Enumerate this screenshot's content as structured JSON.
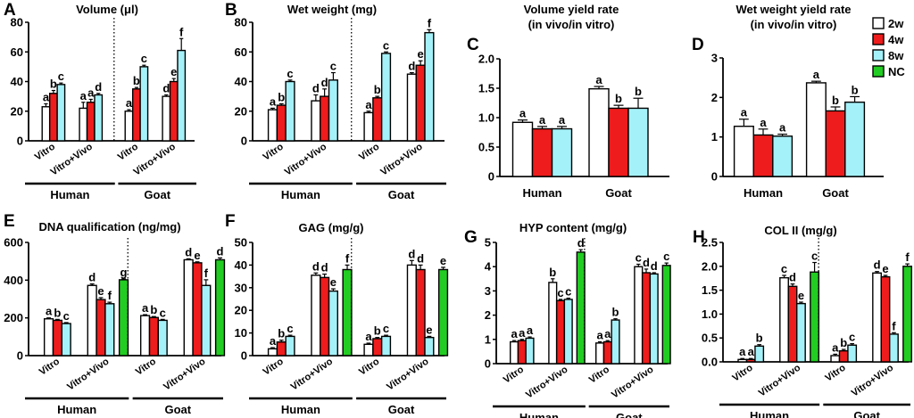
{
  "colors": {
    "2w": "#ffffff",
    "4w": "#ee1c1c",
    "8w": "#a5f1f9",
    "NC": "#22cc22"
  },
  "legend": {
    "title": "",
    "items": [
      "2w",
      "4w",
      "8w",
      "NC"
    ]
  },
  "chart_data": [
    {
      "id": "A",
      "type": "bar",
      "label": "A",
      "title": "Volume (μl)",
      "title2": "",
      "ylim": [
        0,
        80
      ],
      "yticks": [
        "0",
        "20",
        "40",
        "60",
        "80"
      ],
      "yticks_v": [
        0,
        20,
        40,
        60,
        80
      ],
      "layout": "four",
      "divider": true,
      "group_labels": [
        "Human",
        "Goat"
      ],
      "sub_labels": [
        "Vitro",
        "Vitro+Vivo",
        "Vitro",
        "Vitro+Vivo"
      ],
      "clusters": [
        {
          "bars": [
            {
              "s": "2w",
              "v": 23,
              "e": 2,
              "l": "a"
            },
            {
              "s": "4w",
              "v": 32,
              "e": 2,
              "l": "b"
            },
            {
              "s": "8w",
              "v": 38,
              "e": 1,
              "l": "c"
            }
          ]
        },
        {
          "bars": [
            {
              "s": "2w",
              "v": 22,
              "e": 4,
              "l": "a"
            },
            {
              "s": "4w",
              "v": 26,
              "e": 2,
              "l": "a"
            },
            {
              "s": "8w",
              "v": 31,
              "e": 1,
              "l": "d"
            }
          ]
        },
        {
          "bars": [
            {
              "s": "2w",
              "v": 20,
              "e": 1,
              "l": "a"
            },
            {
              "s": "4w",
              "v": 35,
              "e": 1,
              "l": "b"
            },
            {
              "s": "8w",
              "v": 50,
              "e": 1,
              "l": "c"
            }
          ]
        },
        {
          "bars": [
            {
              "s": "2w",
              "v": 30,
              "e": 1,
              "l": "d"
            },
            {
              "s": "4w",
              "v": 40,
              "e": 2,
              "l": "e"
            },
            {
              "s": "8w",
              "v": 61,
              "e": 8,
              "l": "f"
            }
          ]
        }
      ]
    },
    {
      "id": "B",
      "type": "bar",
      "label": "B",
      "title": "Wet weight (mg)",
      "title2": "",
      "ylim": [
        0,
        80
      ],
      "yticks": [
        "0",
        "20",
        "40",
        "60",
        "80"
      ],
      "yticks_v": [
        0,
        20,
        40,
        60,
        80
      ],
      "layout": "four",
      "divider": true,
      "group_labels": [
        "Human",
        "Goat"
      ],
      "sub_labels": [
        "Vitro",
        "Vitro+Vivo",
        "Vitro",
        "Vitro+Vivo"
      ],
      "clusters": [
        {
          "bars": [
            {
              "s": "2w",
              "v": 21,
              "e": 1,
              "l": "a"
            },
            {
              "s": "4w",
              "v": 24,
              "e": 1,
              "l": "b"
            },
            {
              "s": "8w",
              "v": 40,
              "e": 1,
              "l": "c"
            }
          ]
        },
        {
          "bars": [
            {
              "s": "2w",
              "v": 27,
              "e": 4,
              "l": "d"
            },
            {
              "s": "4w",
              "v": 30,
              "e": 5,
              "l": "d"
            },
            {
              "s": "8w",
              "v": 41,
              "e": 5,
              "l": "c"
            }
          ]
        },
        {
          "bars": [
            {
              "s": "2w",
              "v": 19,
              "e": 1,
              "l": "a"
            },
            {
              "s": "4w",
              "v": 29,
              "e": 1,
              "l": "b"
            },
            {
              "s": "8w",
              "v": 59,
              "e": 1,
              "l": "c"
            }
          ]
        },
        {
          "bars": [
            {
              "s": "2w",
              "v": 45,
              "e": 1,
              "l": "d"
            },
            {
              "s": "4w",
              "v": 51,
              "e": 3,
              "l": "e"
            },
            {
              "s": "8w",
              "v": 73,
              "e": 2,
              "l": "f"
            }
          ]
        }
      ]
    },
    {
      "id": "C",
      "type": "bar",
      "label": "C",
      "title": "Volume yield rate",
      "title2": "(in vivo/in vitro)",
      "ylim": [
        0,
        2.0
      ],
      "yticks": [
        "0",
        "0.5",
        "1.0",
        "1.5",
        "2.0"
      ],
      "yticks_v": [
        0,
        0.5,
        1.0,
        1.5,
        2.0
      ],
      "layout": "two",
      "divider": false,
      "group_labels": [
        "Human",
        "Goat"
      ],
      "sub_labels": [],
      "clusters": [
        {
          "bars": [
            {
              "s": "2w",
              "v": 0.92,
              "e": 0.04,
              "l": "a"
            },
            {
              "s": "4w",
              "v": 0.81,
              "e": 0.04,
              "l": "a"
            },
            {
              "s": "8w",
              "v": 0.81,
              "e": 0.04,
              "l": "a"
            }
          ]
        },
        {
          "bars": [
            {
              "s": "2w",
              "v": 1.49,
              "e": 0.04,
              "l": "a"
            },
            {
              "s": "4w",
              "v": 1.16,
              "e": 0.05,
              "l": "b"
            },
            {
              "s": "8w",
              "v": 1.16,
              "e": 0.17,
              "l": "b"
            }
          ]
        }
      ]
    },
    {
      "id": "D",
      "type": "bar",
      "label": "D",
      "title": "Wet weight yield rate",
      "title2": "(in vivo/in vitro)",
      "ylim": [
        0,
        3
      ],
      "yticks": [
        "0",
        "1",
        "2",
        "3"
      ],
      "yticks_v": [
        0,
        1,
        2,
        3
      ],
      "layout": "two",
      "divider": false,
      "group_labels": [
        "Human",
        "Goat"
      ],
      "sub_labels": [],
      "clusters": [
        {
          "bars": [
            {
              "s": "2w",
              "v": 1.27,
              "e": 0.18,
              "l": "a"
            },
            {
              "s": "4w",
              "v": 1.05,
              "e": 0.15,
              "l": "a"
            },
            {
              "s": "8w",
              "v": 1.02,
              "e": 0.05,
              "l": "a"
            }
          ]
        },
        {
          "bars": [
            {
              "s": "2w",
              "v": 2.37,
              "e": 0.04,
              "l": "a"
            },
            {
              "s": "4w",
              "v": 1.66,
              "e": 0.1,
              "l": "b"
            },
            {
              "s": "8w",
              "v": 1.88,
              "e": 0.14,
              "l": "b"
            }
          ]
        }
      ]
    },
    {
      "id": "E",
      "type": "bar",
      "label": "E",
      "title": "DNA qualification (ng/mg)",
      "title2": "",
      "ylim": [
        0,
        600
      ],
      "yticks": [
        "0",
        "200",
        "400",
        "600"
      ],
      "yticks_v": [
        0,
        200,
        400,
        600
      ],
      "layout": "four",
      "divider": true,
      "group_labels": [
        "Human",
        "Goat"
      ],
      "sub_labels": [
        "Vitro",
        "Vitro+Vivo",
        "Vitro",
        "Vitro+Vivo"
      ],
      "clusters": [
        {
          "bars": [
            {
              "s": "2w",
              "v": 195,
              "e": 5,
              "l": "a"
            },
            {
              "s": "4w",
              "v": 187,
              "e": 5,
              "l": "b"
            },
            {
              "s": "8w",
              "v": 170,
              "e": 5,
              "l": "c"
            }
          ]
        },
        {
          "bars": [
            {
              "s": "2w",
              "v": 372,
              "e": 8,
              "l": "d"
            },
            {
              "s": "4w",
              "v": 297,
              "e": 10,
              "l": "e"
            },
            {
              "s": "8w",
              "v": 275,
              "e": 8,
              "l": "f"
            },
            {
              "s": "NC",
              "v": 402,
              "e": 5,
              "l": "g"
            }
          ]
        },
        {
          "bars": [
            {
              "s": "2w",
              "v": 212,
              "e": 5,
              "l": "a"
            },
            {
              "s": "4w",
              "v": 202,
              "e": 5,
              "l": "b"
            },
            {
              "s": "8w",
              "v": 187,
              "e": 5,
              "l": "c"
            }
          ]
        },
        {
          "bars": [
            {
              "s": "2w",
              "v": 508,
              "e": 5,
              "l": "d"
            },
            {
              "s": "4w",
              "v": 492,
              "e": 5,
              "l": "e"
            },
            {
              "s": "8w",
              "v": 372,
              "e": 30,
              "l": "f"
            },
            {
              "s": "NC",
              "v": 508,
              "e": 10,
              "l": "d"
            }
          ]
        }
      ]
    },
    {
      "id": "F",
      "type": "bar",
      "label": "F",
      "title": "GAG (mg/g)",
      "title2": "",
      "ylim": [
        0,
        50
      ],
      "yticks": [
        "0",
        "10",
        "20",
        "30",
        "40",
        "50"
      ],
      "yticks_v": [
        0,
        10,
        20,
        30,
        40,
        50
      ],
      "layout": "four",
      "divider": true,
      "group_labels": [
        "Human",
        "Goat"
      ],
      "sub_labels": [
        "Vitro",
        "Vitro+Vivo",
        "Vitro",
        "Vitro+Vivo"
      ],
      "clusters": [
        {
          "bars": [
            {
              "s": "2w",
              "v": 3,
              "e": 0.5,
              "l": "a"
            },
            {
              "s": "4w",
              "v": 6,
              "e": 0.8,
              "l": "b"
            },
            {
              "s": "8w",
              "v": 8.5,
              "e": 0.5,
              "l": "c"
            }
          ]
        },
        {
          "bars": [
            {
              "s": "2w",
              "v": 35.5,
              "e": 1,
              "l": "d"
            },
            {
              "s": "4w",
              "v": 34.5,
              "e": 1.5,
              "l": "d"
            },
            {
              "s": "8w",
              "v": 28.5,
              "e": 1,
              "l": "e"
            },
            {
              "s": "NC",
              "v": 38,
              "e": 2,
              "l": "f"
            }
          ]
        },
        {
          "bars": [
            {
              "s": "2w",
              "v": 5,
              "e": 0.5,
              "l": "a"
            },
            {
              "s": "4w",
              "v": 7.5,
              "e": 0.5,
              "l": "b"
            },
            {
              "s": "8w",
              "v": 8.5,
              "e": 0.5,
              "l": "c"
            }
          ]
        },
        {
          "bars": [
            {
              "s": "2w",
              "v": 40,
              "e": 2,
              "l": "d"
            },
            {
              "s": "4w",
              "v": 38,
              "e": 2,
              "l": "d"
            },
            {
              "s": "8w",
              "v": 8,
              "e": 0.5,
              "l": "e"
            },
            {
              "s": "NC",
              "v": 38,
              "e": 1,
              "l": "e"
            }
          ]
        }
      ]
    },
    {
      "id": "G",
      "type": "bar",
      "label": "G",
      "title": "HYP content (mg/g)",
      "title2": "",
      "ylim": [
        0,
        5
      ],
      "yticks": [
        "0",
        "1",
        "2",
        "3",
        "4",
        "5"
      ],
      "yticks_v": [
        0,
        1,
        2,
        3,
        4,
        5
      ],
      "layout": "four",
      "divider": true,
      "group_labels": [
        "Human",
        "Goat"
      ],
      "sub_labels": [
        "Vitro",
        "Vitro+Vivo",
        "Vitro",
        "Vitro+Vivo"
      ],
      "clusters": [
        {
          "bars": [
            {
              "s": "2w",
              "v": 0.9,
              "e": 0.05,
              "l": "a"
            },
            {
              "s": "4w",
              "v": 0.95,
              "e": 0.05,
              "l": "a"
            },
            {
              "s": "8w",
              "v": 1.05,
              "e": 0.05,
              "l": "a"
            }
          ]
        },
        {
          "bars": [
            {
              "s": "2w",
              "v": 3.35,
              "e": 0.15,
              "l": "b"
            },
            {
              "s": "4w",
              "v": 2.6,
              "e": 0.05,
              "l": "c"
            },
            {
              "s": "8w",
              "v": 2.65,
              "e": 0.05,
              "l": "c"
            },
            {
              "s": "NC",
              "v": 4.6,
              "e": 0.1,
              "l": "d"
            }
          ]
        },
        {
          "bars": [
            {
              "s": "2w",
              "v": 0.85,
              "e": 0.05,
              "l": "a"
            },
            {
              "s": "4w",
              "v": 0.9,
              "e": 0.05,
              "l": "a"
            },
            {
              "s": "8w",
              "v": 1.8,
              "e": 0.05,
              "l": "b"
            }
          ]
        },
        {
          "bars": [
            {
              "s": "2w",
              "v": 4.0,
              "e": 0.1,
              "l": "c"
            },
            {
              "s": "4w",
              "v": 3.75,
              "e": 0.15,
              "l": "d"
            },
            {
              "s": "8w",
              "v": 3.7,
              "e": 0.05,
              "l": "d"
            },
            {
              "s": "NC",
              "v": 4.05,
              "e": 0.1,
              "l": "c"
            }
          ]
        }
      ]
    },
    {
      "id": "H",
      "type": "bar",
      "label": "H",
      "title": "COL II (mg/g)",
      "title2": "",
      "ylim": [
        0,
        2.5
      ],
      "yticks": [
        "0.0",
        "0.5",
        "1.0",
        "1.5",
        "2.0",
        "2.5"
      ],
      "yticks_v": [
        0,
        0.5,
        1.0,
        1.5,
        2.0,
        2.5
      ],
      "layout": "four",
      "divider": true,
      "group_labels": [
        "Human",
        "Goat"
      ],
      "sub_labels": [
        "Vitro",
        "Vitro+Vivo",
        "Vitro",
        "Vitro+Vivo"
      ],
      "clusters": [
        {
          "bars": [
            {
              "s": "2w",
              "v": 0.05,
              "e": 0.02,
              "l": "a"
            },
            {
              "s": "4w",
              "v": 0.05,
              "e": 0.02,
              "l": "a"
            },
            {
              "s": "8w",
              "v": 0.33,
              "e": 0.03,
              "l": "b"
            }
          ]
        },
        {
          "bars": [
            {
              "s": "2w",
              "v": 1.76,
              "e": 0.05,
              "l": "c"
            },
            {
              "s": "4w",
              "v": 1.58,
              "e": 0.05,
              "l": "d"
            },
            {
              "s": "8w",
              "v": 1.22,
              "e": 0.03,
              "l": "e"
            },
            {
              "s": "NC",
              "v": 1.88,
              "e": 0.2,
              "l": "c"
            }
          ]
        },
        {
          "bars": [
            {
              "s": "2w",
              "v": 0.13,
              "e": 0.03,
              "l": "a"
            },
            {
              "s": "4w",
              "v": 0.23,
              "e": 0.03,
              "l": "b"
            },
            {
              "s": "8w",
              "v": 0.35,
              "e": 0.03,
              "l": "c"
            }
          ]
        },
        {
          "bars": [
            {
              "s": "2w",
              "v": 1.86,
              "e": 0.03,
              "l": "d"
            },
            {
              "s": "4w",
              "v": 1.78,
              "e": 0.03,
              "l": "e"
            },
            {
              "s": "8w",
              "v": 0.58,
              "e": 0.03,
              "l": "f"
            },
            {
              "s": "NC",
              "v": 2.0,
              "e": 0.05,
              "l": "f"
            }
          ]
        }
      ]
    }
  ]
}
